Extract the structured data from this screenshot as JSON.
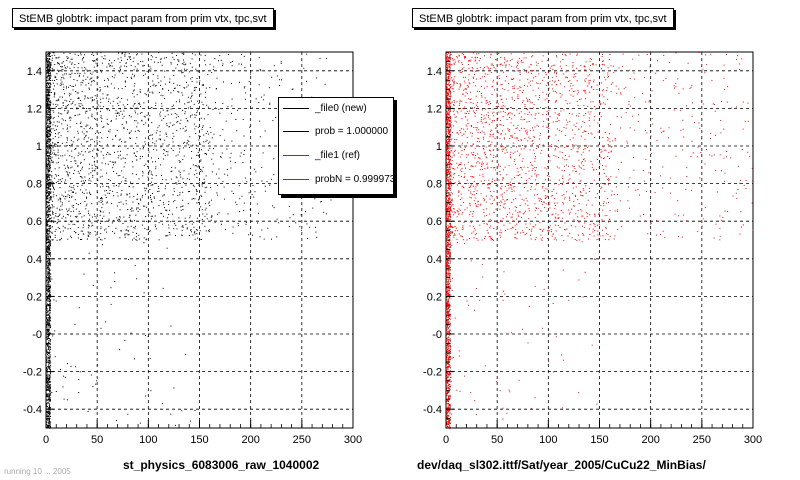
{
  "panels": [
    {
      "title": "StEMB globtrk: impact param from prim vtx, tpc,svt",
      "xtitle": "st_physics_6083006_raw_1040002",
      "color": "#000000"
    },
    {
      "title": "StEMB globtrk: impact param from prim vtx, tpc,svt",
      "xtitle": "dev/daq_sl302.ittf/Sat/year_2005/CuCu22_MinBias/",
      "color": "#ff0000"
    }
  ],
  "legend": {
    "entries": [
      {
        "label": "_file0 (new)",
        "color": "#000000"
      },
      {
        "label": "prob = 1.000000",
        "color": "#000000"
      },
      {
        "label": "_file1 (ref)",
        "color": "#ff0000"
      },
      {
        "label": "probN = 0.999973",
        "color": "#ff0000"
      }
    ]
  },
  "footer": "running 10 ... 2005",
  "chart_data": [
    {
      "type": "scatter",
      "title": "StEMB globtrk: impact param from prim vtx, tpc,svt",
      "xlabel": "st_physics_6083006_raw_1040002",
      "ylabel": "",
      "xlim": [
        0,
        300
      ],
      "ylim": [
        -0.5,
        1.5
      ],
      "xticks": [
        0,
        50,
        100,
        150,
        200,
        250,
        300
      ],
      "yticks": [
        -0.4,
        -0.2,
        0,
        0.2,
        0.4,
        0.6,
        0.8,
        1,
        1.2,
        1.4
      ],
      "ytick_labels": [
        "-0.4",
        "-0.2",
        "-0",
        "0.2",
        "0.4",
        "0.6",
        "0.8",
        "1",
        "1.2",
        "1.4"
      ],
      "grid": true,
      "color": "#000000",
      "regions": [
        {
          "x": [
            0,
            4
          ],
          "y": [
            -0.5,
            1.5
          ],
          "density": "very high"
        },
        {
          "x": [
            4,
            160
          ],
          "y": [
            0.5,
            1.5
          ],
          "density": "high"
        },
        {
          "x": [
            160,
            280
          ],
          "y": [
            0.5,
            1.5
          ],
          "density": "low"
        },
        {
          "x": [
            4,
            150
          ],
          "y": [
            -0.5,
            0.5
          ],
          "density": "very low"
        }
      ]
    },
    {
      "type": "scatter",
      "title": "StEMB globtrk: impact param from prim vtx, tpc,svt",
      "xlabel": "dev/daq_sl302.ittf/Sat/year_2005/CuCu22_MinBias/",
      "ylabel": "",
      "xlim": [
        0,
        300
      ],
      "ylim": [
        -0.5,
        1.5
      ],
      "xticks": [
        0,
        50,
        100,
        150,
        200,
        250,
        300
      ],
      "yticks": [
        -0.4,
        -0.2,
        0,
        0.2,
        0.4,
        0.6,
        0.8,
        1,
        1.2,
        1.4
      ],
      "ytick_labels": [
        "-0.4",
        "-0.2",
        "-0",
        "0.2",
        "0.4",
        "0.6",
        "0.8",
        "1",
        "1.2",
        "1.4"
      ],
      "grid": true,
      "color": "#ff0000",
      "regions": [
        {
          "x": [
            0,
            4
          ],
          "y": [
            -0.5,
            1.5
          ],
          "density": "very high"
        },
        {
          "x": [
            4,
            160
          ],
          "y": [
            0.5,
            1.5
          ],
          "density": "high"
        },
        {
          "x": [
            160,
            300
          ],
          "y": [
            0.5,
            1.5
          ],
          "density": "low"
        },
        {
          "x": [
            4,
            150
          ],
          "y": [
            -0.5,
            0.5
          ],
          "density": "very low"
        }
      ]
    }
  ]
}
